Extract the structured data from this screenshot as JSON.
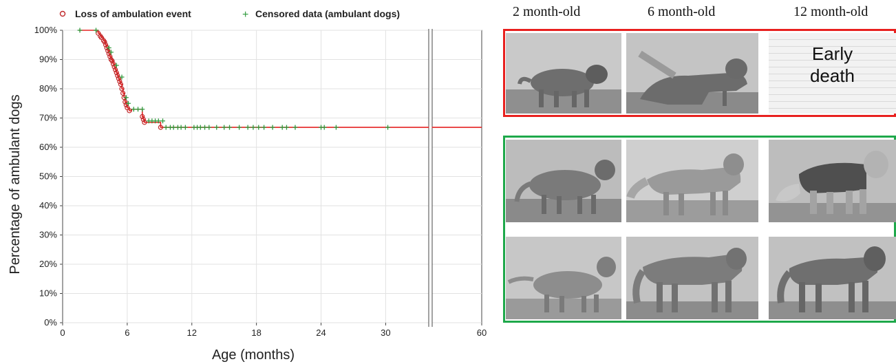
{
  "chart_data": {
    "type": "line",
    "title": "",
    "xlabel": "Age (months)",
    "ylabel": "Percentage of ambulant dogs",
    "xlim": [
      0,
      60
    ],
    "ylim": [
      0,
      100
    ],
    "x_break": [
      34,
      36
    ],
    "x_ticks": [
      "0",
      "6",
      "12",
      "18",
      "24",
      "30",
      "60"
    ],
    "y_ticks": [
      "0%",
      "10%",
      "20%",
      "30%",
      "40%",
      "50%",
      "60%",
      "70%",
      "80%",
      "90%",
      "100%"
    ],
    "grid": true,
    "legend": "top",
    "series": [
      {
        "name": "Loss of ambulation event",
        "marker": "circle",
        "color": "#c0282a",
        "points": [
          [
            3.3,
            99
          ],
          [
            3.5,
            98
          ],
          [
            3.6,
            97.5
          ],
          [
            3.8,
            96.5
          ],
          [
            3.9,
            96
          ],
          [
            4.0,
            95
          ],
          [
            4.1,
            94
          ],
          [
            4.2,
            93
          ],
          [
            4.3,
            92
          ],
          [
            4.4,
            91
          ],
          [
            4.5,
            90
          ],
          [
            4.6,
            89.5
          ],
          [
            4.7,
            88.5
          ],
          [
            4.8,
            87.5
          ],
          [
            4.9,
            86.5
          ],
          [
            5.0,
            85.5
          ],
          [
            5.1,
            84.5
          ],
          [
            5.2,
            83.5
          ],
          [
            5.3,
            82.5
          ],
          [
            5.4,
            81.5
          ],
          [
            5.5,
            80
          ],
          [
            5.6,
            78.5
          ],
          [
            5.7,
            77
          ],
          [
            5.8,
            75.5
          ],
          [
            5.9,
            74.5
          ],
          [
            6.0,
            73.5
          ],
          [
            6.2,
            72.5
          ],
          [
            7.4,
            70.5
          ],
          [
            7.5,
            69.5
          ],
          [
            7.6,
            68.5
          ],
          [
            9.1,
            66.8
          ]
        ]
      },
      {
        "name": "Censored data (ambulant dogs)",
        "marker": "plus",
        "color": "#2e9a3c",
        "points": [
          [
            1.6,
            100
          ],
          [
            3.1,
            100
          ],
          [
            4.3,
            94
          ],
          [
            4.5,
            92.5
          ],
          [
            5.0,
            88
          ],
          [
            5.5,
            84
          ],
          [
            5.9,
            77
          ],
          [
            6.1,
            75
          ],
          [
            6.6,
            73
          ],
          [
            7.0,
            73
          ],
          [
            7.4,
            73
          ],
          [
            8.0,
            69
          ],
          [
            8.3,
            69
          ],
          [
            8.6,
            69
          ],
          [
            8.9,
            69
          ],
          [
            9.3,
            69
          ],
          [
            9.6,
            66.8
          ],
          [
            10.0,
            66.8
          ],
          [
            10.3,
            66.8
          ],
          [
            10.7,
            66.8
          ],
          [
            11.0,
            66.8
          ],
          [
            11.4,
            66.8
          ],
          [
            12.2,
            66.8
          ],
          [
            12.5,
            66.8
          ],
          [
            12.8,
            66.8
          ],
          [
            13.2,
            66.8
          ],
          [
            13.6,
            66.8
          ],
          [
            14.3,
            66.8
          ],
          [
            15.0,
            66.8
          ],
          [
            15.5,
            66.8
          ],
          [
            16.4,
            66.8
          ],
          [
            17.2,
            66.8
          ],
          [
            17.7,
            66.8
          ],
          [
            18.2,
            66.8
          ],
          [
            18.7,
            66.8
          ],
          [
            19.5,
            66.8
          ],
          [
            20.4,
            66.8
          ],
          [
            20.8,
            66.8
          ],
          [
            21.6,
            66.8
          ],
          [
            24.0,
            66.8
          ],
          [
            24.3,
            66.8
          ],
          [
            25.4,
            66.8
          ],
          [
            30.2,
            66.8
          ]
        ]
      }
    ],
    "survival_steps": [
      [
        1.5,
        100
      ],
      [
        3.2,
        100
      ],
      [
        3.3,
        99
      ],
      [
        3.5,
        98
      ],
      [
        3.6,
        97.5
      ],
      [
        3.8,
        96.5
      ],
      [
        3.9,
        96
      ],
      [
        4.0,
        95
      ],
      [
        4.1,
        94
      ],
      [
        4.2,
        93
      ],
      [
        4.3,
        92
      ],
      [
        4.4,
        91
      ],
      [
        4.5,
        90
      ],
      [
        4.6,
        89.5
      ],
      [
        4.7,
        88.5
      ],
      [
        4.8,
        87.5
      ],
      [
        4.9,
        86.5
      ],
      [
        5.0,
        85.5
      ],
      [
        5.1,
        84.5
      ],
      [
        5.2,
        83.5
      ],
      [
        5.3,
        82.5
      ],
      [
        5.4,
        81.5
      ],
      [
        5.5,
        80
      ],
      [
        5.6,
        78.5
      ],
      [
        5.7,
        77
      ],
      [
        5.8,
        75.5
      ],
      [
        5.9,
        74.5
      ],
      [
        6.0,
        73.5
      ],
      [
        6.2,
        72.5
      ],
      [
        6.4,
        73
      ],
      [
        7.4,
        70.5
      ],
      [
        7.5,
        69.5
      ],
      [
        7.6,
        68.5
      ],
      [
        9.1,
        66.8
      ],
      [
        60,
        66.8
      ]
    ],
    "line_color": "#e52222"
  },
  "legend": {
    "event_label": "Loss of ambulation event",
    "censored_label": "Censored data (ambulant dogs)"
  },
  "panels": {
    "column_labels": [
      "2 month-old",
      "6 month-old",
      "12 month-old"
    ],
    "early_death_line1": "Early",
    "early_death_line2": "death",
    "red_border_color": "#e8201e",
    "green_border_color": "#1ea84a"
  }
}
